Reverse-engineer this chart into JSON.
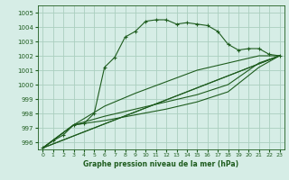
{
  "title": "Graphe pression niveau de la mer (hPa)",
  "xlim": [
    -0.5,
    23.5
  ],
  "ylim": [
    995.5,
    1005.5
  ],
  "yticks": [
    996,
    997,
    998,
    999,
    1000,
    1001,
    1002,
    1003,
    1004,
    1005
  ],
  "xticks": [
    0,
    1,
    2,
    3,
    4,
    5,
    6,
    7,
    8,
    9,
    10,
    11,
    12,
    13,
    14,
    15,
    16,
    17,
    18,
    19,
    20,
    21,
    22,
    23
  ],
  "bg_color": "#d6ede6",
  "grid_color": "#aacfbf",
  "line_color": "#1e5c1e",
  "line1_x": [
    0,
    1,
    2,
    3,
    4,
    5,
    6,
    7,
    8,
    9,
    10,
    11,
    12,
    13,
    14,
    15,
    16,
    17,
    18,
    19,
    20,
    21,
    22,
    23
  ],
  "line1_y": [
    995.6,
    996.1,
    996.5,
    997.2,
    997.3,
    998.0,
    1001.2,
    1001.9,
    1003.3,
    1003.7,
    1004.4,
    1004.5,
    1004.5,
    1004.2,
    1004.3,
    1004.2,
    1004.1,
    1003.7,
    1002.8,
    1002.4,
    1002.5,
    1002.5,
    1002.1,
    1002.0
  ],
  "line2_x": [
    0,
    23
  ],
  "line2_y": [
    995.6,
    1002.0
  ],
  "line3_x": [
    0,
    23
  ],
  "line3_y": [
    995.6,
    1002.0
  ],
  "line4_x": [
    0,
    3,
    6,
    9,
    12,
    15,
    18,
    21,
    23
  ],
  "line4_y": [
    995.6,
    997.2,
    997.5,
    997.9,
    998.3,
    998.8,
    999.5,
    1001.2,
    1002.0
  ],
  "line5_x": [
    0,
    3,
    6,
    9,
    12,
    15,
    18,
    21,
    23
  ],
  "line5_y": [
    995.6,
    997.2,
    997.8,
    998.3,
    998.8,
    999.3,
    1000.0,
    1001.5,
    1002.0
  ],
  "line6_x": [
    0,
    3,
    6,
    9,
    12,
    15,
    18,
    21,
    23
  ],
  "line6_y": [
    995.6,
    997.2,
    998.5,
    999.4,
    1000.2,
    1001.0,
    1001.5,
    1002.0,
    1002.0
  ]
}
